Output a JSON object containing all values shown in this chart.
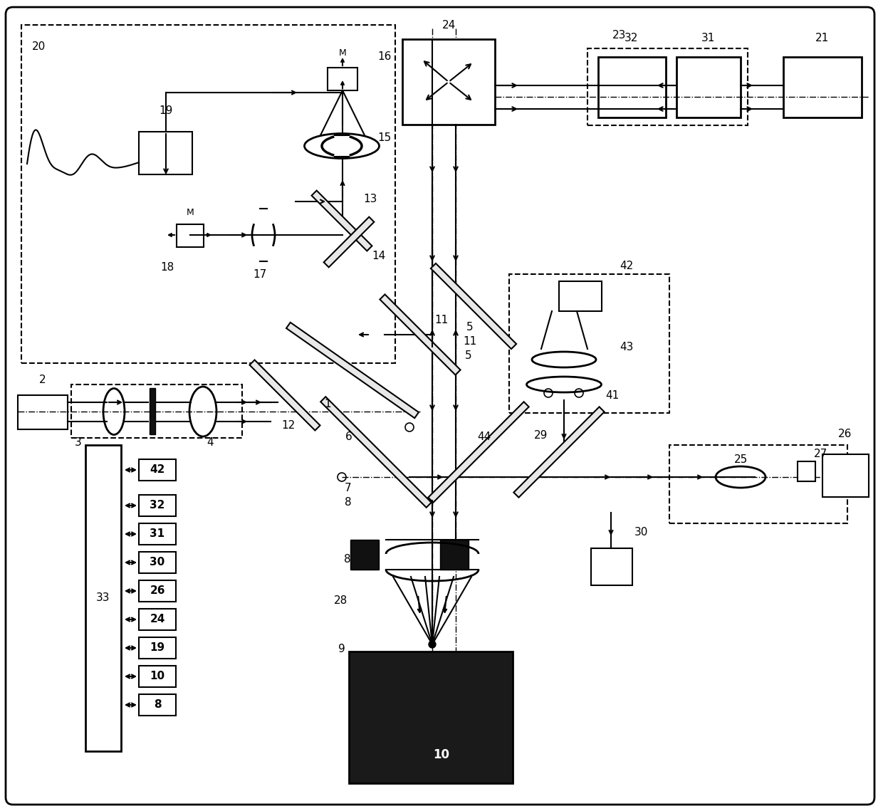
{
  "bg": "#ffffff",
  "lc": "#000000",
  "fs": 11,
  "lw": 1.5,
  "conn_labels": [
    "42",
    "32",
    "31",
    "30",
    "26",
    "24",
    "19",
    "10",
    "8"
  ]
}
